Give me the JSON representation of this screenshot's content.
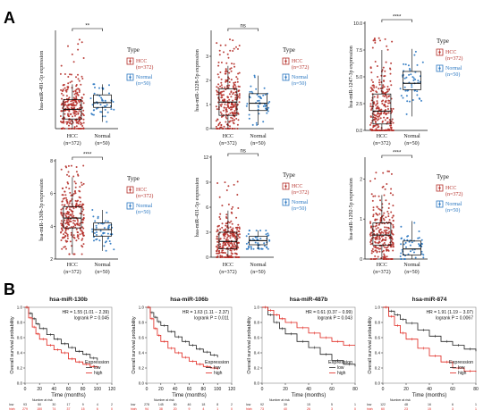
{
  "panel_labels": [
    "A",
    "B"
  ],
  "colors": {
    "hcc": "#b5302a",
    "normal": "#2a77c1",
    "km_low": "#222222",
    "km_high": "#e0231b",
    "axis": "#111111",
    "frame": "#888888",
    "bracket": "#000000"
  },
  "chart_data": [
    {
      "type": "box",
      "panel": "A",
      "ylabel": "hsa-miR-491-5p expression",
      "categories": [
        "HCC\n(n=372)",
        "Normal\n(n=50)"
      ],
      "ylim": [
        0,
        5
      ],
      "yticks": [],
      "series": [
        {
          "name": "HCC",
          "n": 372,
          "q1": 0.5,
          "median": 1.0,
          "q3": 1.5,
          "whisker_low": 0,
          "whisker_high": 2.3,
          "max": 4.8
        },
        {
          "name": "Normal",
          "n": 50,
          "q1": 1.1,
          "median": 1.35,
          "q3": 1.75,
          "whisker_low": 0.35,
          "whisker_high": 2.3,
          "max": 2.3
        }
      ],
      "significance": "**",
      "legend": {
        "title": "Type",
        "entries": [
          "HCC\n(n=372)",
          "Normal\n(n=50)"
        ]
      }
    },
    {
      "type": "box",
      "panel": "A",
      "ylabel": "hsa-miR-1228-5p expression",
      "categories": [
        "HCC\n(n=372)",
        "Normal\n(n=50)"
      ],
      "ylim": [
        0,
        4
      ],
      "yticks": [
        0,
        1,
        2,
        3
      ],
      "series": [
        {
          "name": "HCC",
          "n": 372,
          "q1": 0.55,
          "median": 1.1,
          "q3": 1.65,
          "whisker_low": 0,
          "whisker_high": 2.6,
          "max": 3.7
        },
        {
          "name": "Normal",
          "n": 50,
          "q1": 0.75,
          "median": 1.05,
          "q3": 1.45,
          "whisker_low": 0.15,
          "whisker_high": 2.2,
          "max": 2.2
        }
      ],
      "significance": "ns",
      "legend": {
        "title": "Type",
        "entries": [
          "HCC\n(n=372)",
          "Normal\n(n=50)"
        ]
      }
    },
    {
      "type": "box",
      "panel": "A",
      "ylabel": "hsa-miR-1247-3p expression",
      "categories": [
        "HCC\n(n=372)",
        "Normal\n(n=50)"
      ],
      "ylim": [
        0,
        10
      ],
      "yticks": [
        0.0,
        2.5,
        5.0,
        7.5,
        10.0
      ],
      "series": [
        {
          "name": "HCC",
          "n": 372,
          "q1": 0.6,
          "median": 1.8,
          "q3": 3.4,
          "whisker_low": 0,
          "whisker_high": 7.5,
          "max": 8.7
        },
        {
          "name": "Normal",
          "n": 50,
          "q1": 3.8,
          "median": 4.4,
          "q3": 5.5,
          "whisker_low": 1.3,
          "whisker_high": 7.6,
          "max": 7.6
        }
      ],
      "significance": "****",
      "legend": {
        "title": "Type",
        "entries": [
          "HCC\n(n=372)",
          "Normal\n(n=50)"
        ]
      }
    },
    {
      "type": "box",
      "panel": "A",
      "ylabel": "hsa-miR-130b-3p expression",
      "categories": [
        "HCC\n(n=372)",
        "Normal\n(n=50)"
      ],
      "ylim": [
        2,
        8
      ],
      "yticks": [
        2,
        4,
        6,
        8
      ],
      "series": [
        {
          "name": "HCC",
          "n": 372,
          "q1": 3.9,
          "median": 4.5,
          "q3": 5.2,
          "whisker_low": 2.3,
          "whisker_high": 7.0,
          "max": 7.7
        },
        {
          "name": "Normal",
          "n": 50,
          "q1": 3.4,
          "median": 3.8,
          "q3": 4.2,
          "whisker_low": 2.5,
          "whisker_high": 5.0,
          "max": 5.0
        }
      ],
      "significance": "****",
      "legend": {
        "title": "Type",
        "entries": [
          "HCC\n(n=372)",
          "Normal\n(n=50)"
        ]
      }
    },
    {
      "type": "box",
      "panel": "A",
      "ylabel": "hsa-miR-431-5p expression",
      "categories": [
        "HCC\n(n=372)",
        "Normal\n(n=50)"
      ],
      "ylim": [
        0,
        12
      ],
      "yticks": [
        0,
        3,
        6,
        9,
        12
      ],
      "series": [
        {
          "name": "HCC",
          "n": 372,
          "q1": 1.0,
          "median": 1.9,
          "q3": 3.0,
          "whisker_low": 0,
          "whisker_high": 5.6,
          "max": 9.5
        },
        {
          "name": "Normal",
          "n": 50,
          "q1": 1.5,
          "median": 2.0,
          "q3": 2.5,
          "whisker_low": 1.0,
          "whisker_high": 3.2,
          "max": 3.2
        }
      ],
      "significance": "ns",
      "legend": {
        "title": "Type",
        "entries": [
          "HCC\n(n=372)",
          "Normal\n(n=50)"
        ]
      }
    },
    {
      "type": "box",
      "panel": "A",
      "ylabel": "hsa-miR-1292-5p expression",
      "categories": [
        "HCC\n(n=372)",
        "Normal\n(n=50)"
      ],
      "ylim": [
        0,
        2.5
      ],
      "yticks": [
        0,
        1,
        2
      ],
      "series": [
        {
          "name": "HCC",
          "n": 372,
          "q1": 0.35,
          "median": 0.6,
          "q3": 0.9,
          "whisker_low": 0,
          "whisker_high": 1.6,
          "max": 2.2
        },
        {
          "name": "Normal",
          "n": 50,
          "q1": 0.1,
          "median": 0.25,
          "q3": 0.45,
          "whisker_low": 0,
          "whisker_high": 0.95,
          "max": 0.95
        }
      ],
      "significance": "****",
      "legend": {
        "title": "Type",
        "entries": [
          "HCC\n(n=372)",
          "Normal\n(n=50)"
        ]
      }
    },
    {
      "type": "line",
      "subtype": "kaplan-meier",
      "panel": "B",
      "title": "hsa-miR-130b",
      "annotation": [
        "HR = 1.55 (1.01 − 2.39)",
        "logrank P = 0.045"
      ],
      "xlabel": "Time (months)",
      "ylabel": "Overall survival probability",
      "xlim": [
        0,
        120
      ],
      "xticks": [
        0,
        20,
        40,
        60,
        80,
        100,
        120
      ],
      "ylim": [
        0,
        1
      ],
      "yticks": [
        0.0,
        0.2,
        0.4,
        0.6,
        0.8,
        1.0
      ],
      "legend": {
        "title": "Expression",
        "entries": [
          "low",
          "high"
        ]
      },
      "series": [
        {
          "name": "low",
          "x": [
            0,
            5,
            10,
            15,
            20,
            30,
            40,
            50,
            60,
            70,
            80,
            90,
            100
          ],
          "y": [
            1.0,
            0.92,
            0.85,
            0.78,
            0.72,
            0.64,
            0.58,
            0.52,
            0.47,
            0.42,
            0.38,
            0.33,
            0.3
          ]
        },
        {
          "name": "high",
          "x": [
            0,
            5,
            10,
            15,
            20,
            30,
            40,
            50,
            60,
            70,
            80,
            90,
            100
          ],
          "y": [
            1.0,
            0.86,
            0.74,
            0.65,
            0.58,
            0.5,
            0.44,
            0.4,
            0.32,
            0.28,
            0.25,
            0.22,
            0.2
          ]
        }
      ],
      "risk_table": {
        "title": "Number at risk",
        "times": [
          0,
          20,
          40,
          60,
          80,
          100,
          120
        ],
        "rows": [
          {
            "label": "low",
            "values": [
              "93",
              "50",
              "30",
              "17",
              "9",
              "4",
              "2"
            ]
          },
          {
            "label": "high",
            "values": [
              "279",
              "150",
              "74",
              "37",
              "15",
              "6",
              "0"
            ]
          }
        ]
      }
    },
    {
      "type": "line",
      "subtype": "kaplan-meier",
      "panel": "B",
      "title": "hsa-miR-106b",
      "annotation": [
        "HR = 1.63 (1.11 − 2.37)",
        "logrank P = 0.011"
      ],
      "xlabel": "Time (months)",
      "ylabel": "Overall survival probability",
      "xlim": [
        0,
        120
      ],
      "xticks": [
        0,
        20,
        40,
        60,
        80,
        100,
        120
      ],
      "ylim": [
        0,
        1
      ],
      "yticks": [
        0.0,
        0.2,
        0.4,
        0.6,
        0.8,
        1.0
      ],
      "legend": {
        "title": "Expression",
        "entries": [
          "low",
          "high"
        ]
      },
      "series": [
        {
          "name": "low",
          "x": [
            0,
            5,
            10,
            15,
            20,
            30,
            40,
            50,
            60,
            70,
            80,
            90,
            100
          ],
          "y": [
            1.0,
            0.93,
            0.87,
            0.81,
            0.76,
            0.68,
            0.61,
            0.55,
            0.5,
            0.45,
            0.41,
            0.37,
            0.34
          ]
        },
        {
          "name": "high",
          "x": [
            0,
            5,
            10,
            15,
            20,
            30,
            40,
            50,
            60,
            70,
            80,
            90,
            100
          ],
          "y": [
            1.0,
            0.85,
            0.72,
            0.63,
            0.55,
            0.46,
            0.4,
            0.34,
            0.29,
            0.25,
            0.22,
            0.2,
            0.18
          ]
        }
      ],
      "risk_table": {
        "title": "Number at risk",
        "times": [
          0,
          20,
          40,
          60,
          80,
          100,
          120
        ],
        "rows": [
          {
            "label": "low",
            "values": [
              "278",
              "145",
              "80",
              "46",
              "18",
              "8",
              "2"
            ]
          },
          {
            "label": "high",
            "values": [
              "94",
              "38",
              "20",
              "9",
              "4",
              "1",
              "0"
            ]
          }
        ]
      }
    },
    {
      "type": "line",
      "subtype": "kaplan-meier",
      "panel": "B",
      "title": "hsa-miR-487b",
      "annotation": [
        "HR = 0.61 (0.37 − 0.99)",
        "logrank P = 0.043"
      ],
      "xlabel": "Time (months)",
      "ylabel": "Overall survival probability",
      "xlim": [
        0,
        80
      ],
      "xticks": [
        0,
        20,
        40,
        60,
        80
      ],
      "ylim": [
        0,
        1
      ],
      "yticks": [
        0.0,
        0.2,
        0.4,
        0.6,
        0.8,
        1.0
      ],
      "legend": {
        "title": "Expression",
        "entries": [
          "low",
          "high"
        ]
      },
      "series": [
        {
          "name": "low",
          "x": [
            0,
            5,
            10,
            15,
            20,
            30,
            40,
            50,
            60,
            70,
            80
          ],
          "y": [
            1.0,
            0.9,
            0.8,
            0.72,
            0.65,
            0.55,
            0.47,
            0.38,
            0.3,
            0.25,
            0.22
          ]
        },
        {
          "name": "high",
          "x": [
            0,
            5,
            10,
            15,
            20,
            30,
            40,
            50,
            60,
            70,
            80
          ],
          "y": [
            1.0,
            0.96,
            0.9,
            0.85,
            0.8,
            0.73,
            0.66,
            0.6,
            0.55,
            0.5,
            0.5
          ]
        }
      ],
      "risk_table": {
        "title": "Number at risk",
        "times": [
          0,
          20,
          40,
          60,
          80
        ],
        "rows": [
          {
            "label": "low",
            "values": [
              "92",
              "39",
              "15",
              "5",
              "1"
            ]
          },
          {
            "label": "high",
            "values": [
              "73",
              "40",
              "26",
              "3",
              "0"
            ]
          }
        ]
      }
    },
    {
      "type": "line",
      "subtype": "kaplan-meier",
      "panel": "B",
      "title": "hsa-miR-874",
      "annotation": [
        "HR = 1.91 (1.19 − 3.07)",
        "logrank P = 0.0067"
      ],
      "xlabel": "Time (months)",
      "ylabel": "Overall survival probability",
      "xlim": [
        0,
        80
      ],
      "xticks": [
        0,
        20,
        40,
        60,
        80
      ],
      "ylim": [
        0,
        1
      ],
      "yticks": [
        0.0,
        0.2,
        0.4,
        0.6,
        0.8,
        1.0
      ],
      "legend": {
        "title": "Expression",
        "entries": [
          "low",
          "high"
        ]
      },
      "series": [
        {
          "name": "low",
          "x": [
            0,
            5,
            10,
            15,
            20,
            30,
            40,
            50,
            60,
            70,
            80
          ],
          "y": [
            1.0,
            0.95,
            0.9,
            0.84,
            0.79,
            0.7,
            0.62,
            0.55,
            0.5,
            0.45,
            0.42
          ]
        },
        {
          "name": "high",
          "x": [
            0,
            5,
            10,
            15,
            20,
            30,
            40,
            50,
            60,
            70,
            80
          ],
          "y": [
            1.0,
            0.88,
            0.76,
            0.66,
            0.58,
            0.46,
            0.36,
            0.28,
            0.2,
            0.16,
            0.15
          ]
        }
      ],
      "risk_table": {
        "title": "Number at risk",
        "times": [
          0,
          20,
          40,
          60,
          80
        ],
        "rows": [
          {
            "label": "low",
            "values": [
              "122",
              "48",
              "16",
              "6",
              "1"
            ]
          },
          {
            "label": "high",
            "values": [
              "60",
              "23",
              "15",
              "3",
              "1"
            ]
          }
        ]
      }
    }
  ]
}
